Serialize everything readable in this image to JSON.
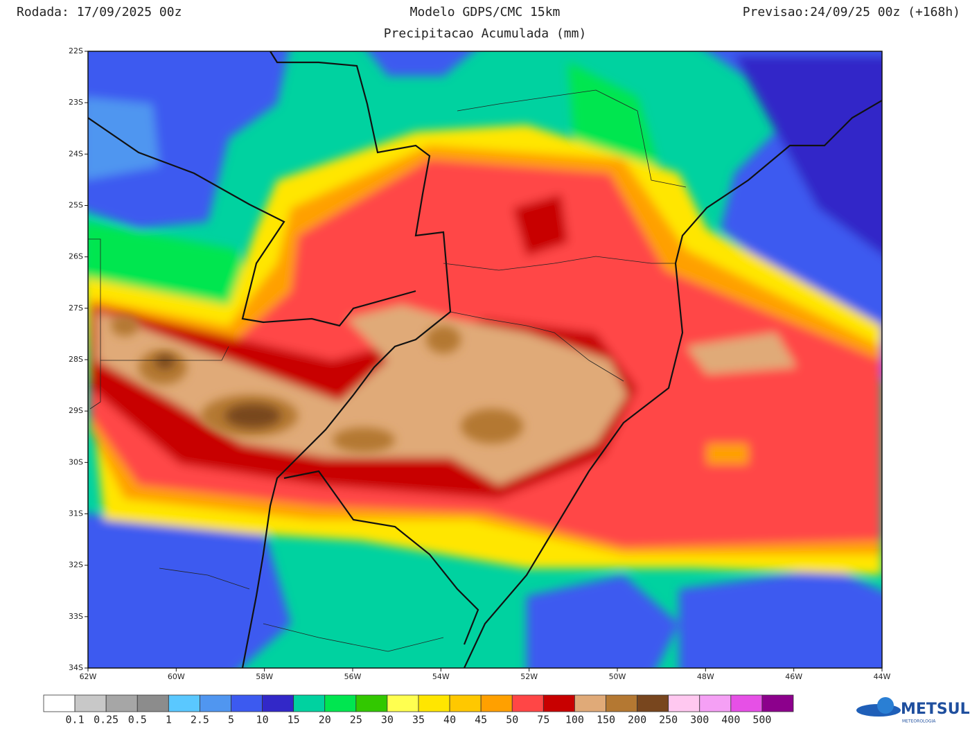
{
  "header": {
    "left": "Rodada: 17/09/2025 00z",
    "center": "Modelo GDPS/CMC 15km",
    "subtitle": "Precipitacao Acumulada (mm)",
    "right": "Previsao:24/09/25 00z (+168h)"
  },
  "map": {
    "lat_labels": [
      "22S",
      "23S",
      "24S",
      "25S",
      "26S",
      "27S",
      "28S",
      "29S",
      "30S",
      "31S",
      "32S",
      "33S",
      "34S"
    ],
    "lon_labels": [
      "62W",
      "60W",
      "58W",
      "56W",
      "54W",
      "52W",
      "50W",
      "48W",
      "46W",
      "44W"
    ]
  },
  "legend": {
    "colors": [
      "#ffffff",
      "#c8c8c8",
      "#a6a6a6",
      "#8c8c8c",
      "#5ac8ff",
      "#5096f0",
      "#3c5af0",
      "#3228c8",
      "#00d2a0",
      "#00e650",
      "#32c800",
      "#ffff50",
      "#ffe600",
      "#ffc800",
      "#ffa000",
      "#ff4646",
      "#c80000",
      "#e0aa78",
      "#b47832",
      "#78461e",
      "#ffc8f0",
      "#f5a0f5",
      "#e650e6",
      "#8c008c"
    ],
    "labels": [
      "0.1",
      "0.25",
      "0.5",
      "1",
      "2.5",
      "5",
      "10",
      "15",
      "20",
      "25",
      "30",
      "35",
      "40",
      "45",
      "50",
      "75",
      "100",
      "150",
      "200",
      "250",
      "300",
      "400",
      "500"
    ]
  },
  "logo": {
    "text": "METSUL",
    "subtext": "METEOROLOGIA"
  }
}
